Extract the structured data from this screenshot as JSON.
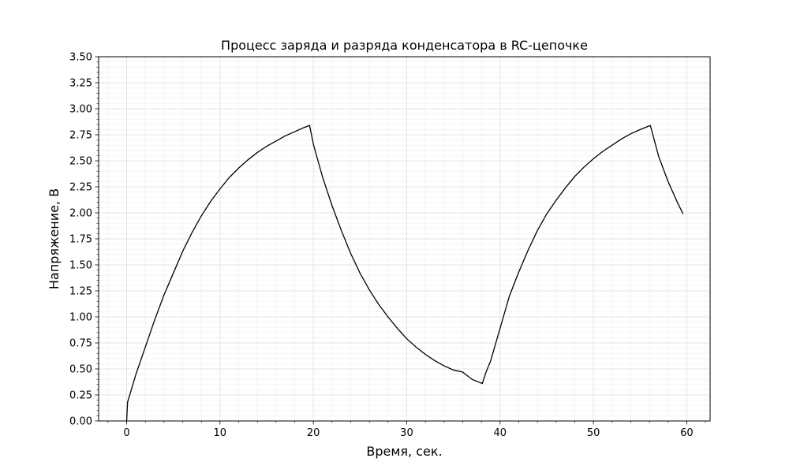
{
  "chart_data": {
    "type": "line",
    "title": "Процесс заряда и разряда конденсатора в RC-цепочке",
    "xlabel": "Время, сек.",
    "ylabel": "Напряжение, В",
    "xlim": [
      -3,
      62.5
    ],
    "ylim": [
      0,
      3.5
    ],
    "xticks": [
      0,
      10,
      20,
      30,
      40,
      50,
      60
    ],
    "yticks": [
      0.0,
      0.25,
      0.5,
      0.75,
      1.0,
      1.25,
      1.5,
      1.75,
      2.0,
      2.25,
      2.5,
      2.75,
      3.0,
      3.25,
      3.5
    ],
    "xtick_labels": [
      "0",
      "10",
      "20",
      "30",
      "40",
      "50",
      "60"
    ],
    "ytick_labels": [
      "0.00",
      "0.25",
      "0.50",
      "0.75",
      "1.00",
      "1.25",
      "1.50",
      "1.75",
      "2.00",
      "2.25",
      "2.50",
      "2.75",
      "3.00",
      "3.25",
      "3.50"
    ],
    "grid": true,
    "minor_grid": true,
    "line_color": "#000000",
    "series": [
      {
        "x": [
          0,
          0.1,
          0.5,
          1,
          2,
          3,
          4,
          5,
          6,
          7,
          8,
          9,
          10,
          11,
          12,
          13,
          14,
          15,
          16,
          17,
          18,
          19,
          19.6,
          20,
          21,
          22,
          23,
          24,
          25,
          26,
          27,
          28,
          29,
          30,
          31,
          32,
          33,
          34,
          35,
          36,
          37,
          38.1,
          38.5,
          39,
          40,
          41,
          42,
          43,
          44,
          45,
          46,
          47,
          48,
          49,
          50,
          51,
          52,
          53,
          54,
          55,
          56.1,
          57,
          58,
          59,
          59.6
        ],
        "y": [
          0.0,
          0.18,
          0.3,
          0.45,
          0.71,
          0.97,
          1.21,
          1.42,
          1.63,
          1.81,
          1.97,
          2.11,
          2.23,
          2.34,
          2.43,
          2.51,
          2.58,
          2.64,
          2.69,
          2.74,
          2.78,
          2.82,
          2.84,
          2.66,
          2.34,
          2.07,
          1.83,
          1.61,
          1.42,
          1.26,
          1.12,
          1.0,
          0.89,
          0.79,
          0.71,
          0.64,
          0.58,
          0.53,
          0.49,
          0.47,
          0.4,
          0.36,
          0.47,
          0.58,
          0.89,
          1.2,
          1.43,
          1.64,
          1.83,
          1.99,
          2.12,
          2.24,
          2.35,
          2.44,
          2.52,
          2.59,
          2.65,
          2.71,
          2.76,
          2.8,
          2.84,
          2.54,
          2.3,
          2.1,
          1.99
        ]
      }
    ]
  }
}
